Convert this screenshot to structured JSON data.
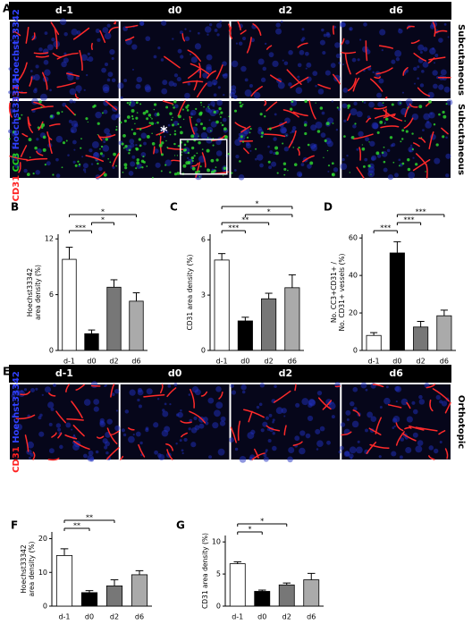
{
  "chart_data": [
    {
      "type": "bar",
      "label": "B",
      "ylabel": [
        "Hoechst33342",
        "area density (%)"
      ],
      "categories": [
        "d-1",
        "d0",
        "d2",
        "d6"
      ],
      "values": [
        9.8,
        1.8,
        6.8,
        5.3
      ],
      "errors": [
        1.3,
        0.4,
        0.8,
        0.9
      ],
      "colors": [
        "#ffffff",
        "#000000",
        "#777777",
        "#aaaaaa"
      ],
      "ylim": [
        0,
        12.5
      ],
      "yticks": [
        0,
        6,
        12
      ],
      "annotations": [
        {
          "label": "***",
          "between": [
            "d-1",
            "d0"
          ]
        },
        {
          "label": "*",
          "between": [
            "d0",
            "d2"
          ]
        },
        {
          "label": "*",
          "between": [
            "d-1",
            "d6"
          ]
        }
      ]
    },
    {
      "type": "bar",
      "label": "C",
      "ylabel": [
        "CD31 area density (%)"
      ],
      "categories": [
        "d-1",
        "d0",
        "d2",
        "d6"
      ],
      "values": [
        4.9,
        1.6,
        2.8,
        3.4
      ],
      "errors": [
        0.35,
        0.2,
        0.3,
        0.7
      ],
      "colors": [
        "#ffffff",
        "#000000",
        "#777777",
        "#aaaaaa"
      ],
      "ylim": [
        0,
        6.3
      ],
      "yticks": [
        0,
        3,
        6
      ],
      "annotations": [
        {
          "label": "***",
          "between": [
            "d-1",
            "d0"
          ]
        },
        {
          "label": "**",
          "between": [
            "d-1",
            "d2"
          ]
        },
        {
          "label": "*",
          "between": [
            "d0",
            "d6"
          ]
        },
        {
          "label": "*",
          "between": [
            "d-1",
            "d6"
          ]
        }
      ]
    },
    {
      "type": "bar",
      "label": "D",
      "ylabel": [
        "No. CC3+CD31+ /",
        "No. CD31+ vessels (%)"
      ],
      "categories": [
        "d-1",
        "d0",
        "d2",
        "d6"
      ],
      "values": [
        8,
        52,
        12.5,
        18.5
      ],
      "errors": [
        1.5,
        6,
        3,
        3
      ],
      "colors": [
        "#ffffff",
        "#000000",
        "#777777",
        "#aaaaaa"
      ],
      "ylim": [
        0,
        62
      ],
      "yticks": [
        0,
        20,
        40,
        60
      ],
      "annotations": [
        {
          "label": "***",
          "between": [
            "d-1",
            "d0"
          ]
        },
        {
          "label": "***",
          "between": [
            "d0",
            "d2"
          ]
        },
        {
          "label": "***",
          "between": [
            "d0",
            "d6"
          ]
        }
      ]
    },
    {
      "type": "bar",
      "label": "F",
      "ylabel": [
        "Hoechst33342",
        "area density (%)"
      ],
      "categories": [
        "d-1",
        "d0",
        "d2",
        "d6"
      ],
      "values": [
        15,
        4,
        6,
        9.3
      ],
      "errors": [
        2,
        0.6,
        1.8,
        1.2
      ],
      "colors": [
        "#ffffff",
        "#000000",
        "#777777",
        "#aaaaaa"
      ],
      "ylim": [
        0,
        22
      ],
      "yticks": [
        0,
        10,
        20
      ],
      "annotations": [
        {
          "label": "**",
          "between": [
            "d-1",
            "d0"
          ]
        },
        {
          "label": "**",
          "between": [
            "d-1",
            "d2"
          ]
        }
      ]
    },
    {
      "type": "bar",
      "label": "G",
      "ylabel": [
        "CD31 area density (%)"
      ],
      "categories": [
        "d-1",
        "d0",
        "d2",
        "d6"
      ],
      "values": [
        6.6,
        2.3,
        3.3,
        4.1
      ],
      "errors": [
        0.3,
        0.2,
        0.3,
        1.0
      ],
      "colors": [
        "#ffffff",
        "#000000",
        "#777777",
        "#aaaaaa"
      ],
      "ylim": [
        0,
        11
      ],
      "yticks": [
        0,
        5,
        10
      ],
      "annotations": [
        {
          "label": "*",
          "between": [
            "d-1",
            "d0"
          ]
        },
        {
          "label": "*",
          "between": [
            "d-1",
            "d2"
          ]
        }
      ]
    }
  ],
  "image_panels": [
    {
      "label": "A",
      "columns": [
        "d-1",
        "d0",
        "d2",
        "d6"
      ],
      "marker": "*",
      "rows": [
        {
          "stains": [
            {
              "text": "CD31",
              "color": "#ff2020"
            },
            {
              "text": "Hoechst33342",
              "color": "#3040ff"
            }
          ],
          "site": "Subcutaneous"
        },
        {
          "stains": [
            {
              "text": "CD31",
              "color": "#ff2020"
            },
            {
              "text": "CC3",
              "color": "#20d020"
            },
            {
              "text": "Hoechst33342",
              "color": "#3040ff"
            }
          ],
          "site": "Subcutaneous"
        }
      ]
    },
    {
      "label": "E",
      "columns": [
        "d-1",
        "d0",
        "d2",
        "d6"
      ],
      "rows": [
        {
          "stains": [
            {
              "text": "CD31",
              "color": "#ff2020"
            },
            {
              "text": "Hoechst33342",
              "color": "#3040ff"
            }
          ],
          "site": "Orthotopic"
        }
      ]
    }
  ]
}
